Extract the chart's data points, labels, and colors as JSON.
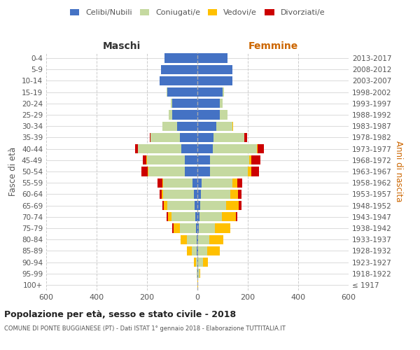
{
  "age_groups": [
    "100+",
    "95-99",
    "90-94",
    "85-89",
    "80-84",
    "75-79",
    "70-74",
    "65-69",
    "60-64",
    "55-59",
    "50-54",
    "45-49",
    "40-44",
    "35-39",
    "30-34",
    "25-29",
    "20-24",
    "15-19",
    "10-14",
    "5-9",
    "0-4"
  ],
  "birth_years": [
    "≤ 1917",
    "1918-1922",
    "1923-1927",
    "1928-1932",
    "1933-1937",
    "1938-1942",
    "1943-1947",
    "1948-1952",
    "1953-1957",
    "1958-1962",
    "1963-1967",
    "1968-1972",
    "1973-1977",
    "1978-1982",
    "1983-1987",
    "1988-1992",
    "1993-1997",
    "1998-2002",
    "2003-2007",
    "2008-2012",
    "2013-2017"
  ],
  "colors": {
    "celibi": "#4472c4",
    "coniugati": "#c5d9a0",
    "vedovi": "#ffc000",
    "divorziati": "#cc0000"
  },
  "males": {
    "celibi": [
      0,
      0,
      0,
      2,
      3,
      5,
      8,
      10,
      15,
      20,
      50,
      50,
      65,
      70,
      80,
      100,
      100,
      120,
      150,
      145,
      130
    ],
    "coniugati": [
      0,
      2,
      5,
      20,
      40,
      65,
      95,
      110,
      120,
      115,
      145,
      150,
      170,
      115,
      60,
      15,
      5,
      3,
      0,
      0,
      0
    ],
    "vedovi": [
      0,
      2,
      10,
      20,
      25,
      25,
      15,
      12,
      6,
      3,
      3,
      2,
      2,
      0,
      0,
      0,
      0,
      0,
      0,
      0,
      0
    ],
    "divorziati": [
      0,
      0,
      0,
      0,
      0,
      5,
      5,
      8,
      10,
      20,
      25,
      15,
      10,
      5,
      0,
      0,
      0,
      0,
      0,
      0,
      0
    ]
  },
  "females": {
    "nubili": [
      0,
      2,
      2,
      3,
      3,
      5,
      8,
      10,
      15,
      18,
      50,
      50,
      60,
      65,
      75,
      90,
      90,
      100,
      140,
      140,
      120
    ],
    "coniugate": [
      0,
      5,
      20,
      35,
      45,
      65,
      90,
      105,
      115,
      120,
      150,
      155,
      175,
      120,
      65,
      30,
      10,
      5,
      0,
      0,
      0
    ],
    "vedove": [
      2,
      5,
      20,
      50,
      55,
      60,
      55,
      50,
      30,
      20,
      15,
      10,
      5,
      2,
      2,
      0,
      0,
      0,
      0,
      0,
      0
    ],
    "divorziate": [
      0,
      0,
      0,
      0,
      0,
      0,
      5,
      10,
      15,
      20,
      30,
      35,
      25,
      10,
      0,
      0,
      0,
      0,
      0,
      0,
      0
    ]
  },
  "xlim": [
    -600,
    600
  ],
  "xticks": [
    -600,
    -400,
    -200,
    0,
    200,
    400,
    600
  ],
  "xticklabels": [
    "600",
    "400",
    "200",
    "0",
    "200",
    "400",
    "600"
  ],
  "title": "Popolazione per età, sesso e stato civile - 2018",
  "subtitle": "COMUNE DI PONTE BUGGIANESE (PT) - Dati ISTAT 1° gennaio 2018 - Elaborazione TUTTITALIA.IT",
  "ylabel_left": "Fasce di età",
  "ylabel_right": "Anni di nascita",
  "header_maschi": "Maschi",
  "header_femmine": "Femmine",
  "background_color": "#ffffff",
  "grid_color": "#cccccc"
}
